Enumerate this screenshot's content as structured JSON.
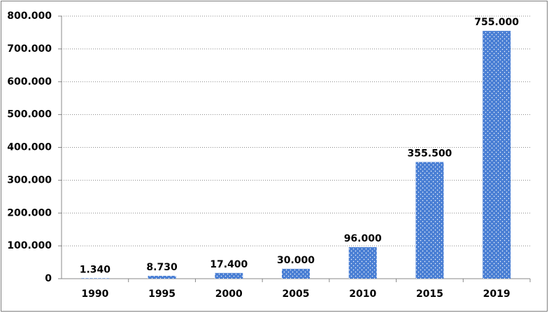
{
  "chart_data": {
    "type": "bar",
    "categories": [
      "1990",
      "1995",
      "2000",
      "2005",
      "2010",
      "2015",
      "2019"
    ],
    "values": [
      1340,
      8730,
      17400,
      30000,
      96000,
      355500,
      755000
    ],
    "value_labels": [
      "1.340",
      "8.730",
      "17.400",
      "30.000",
      "96.000",
      "355.500",
      "755.000"
    ],
    "color": "#4a7fd4",
    "ylim": [
      0,
      800000
    ],
    "yticks": [
      0,
      {
        "value": 100000,
        "label": "100.000"
      },
      {
        "value": 200000,
        "label": "200.000"
      },
      {
        "value": 300000,
        "label": "300.000"
      },
      {
        "value": 400000,
        "label": "400.000"
      },
      {
        "value": 500000,
        "label": "500.000"
      },
      {
        "value": 600000,
        "label": "600.000"
      },
      {
        "value": 700000,
        "label": "700.000"
      },
      {
        "value": 800000,
        "label": "800.000"
      }
    ],
    "grid": true
  }
}
